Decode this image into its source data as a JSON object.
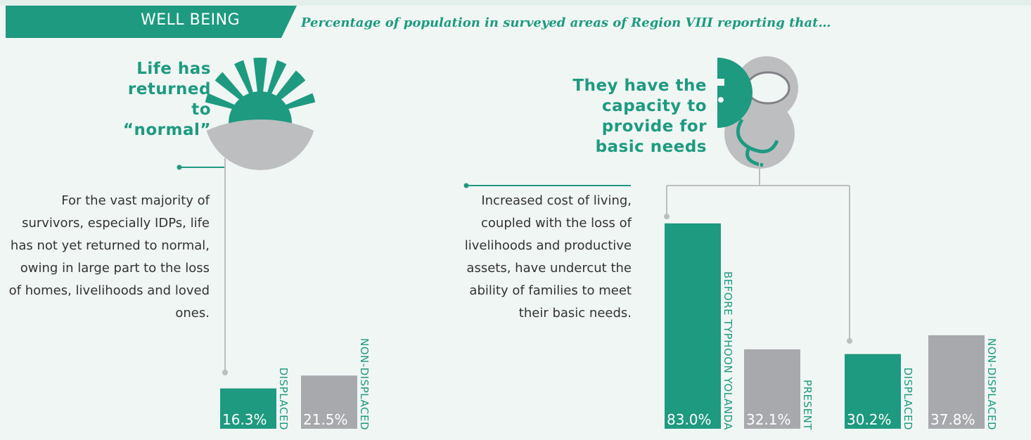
{
  "header": {
    "title": "WELL BEING",
    "subtitle": "Percentage of population in surveyed areas of Region VIII reporting that…"
  },
  "chart_data": [
    {
      "type": "bar",
      "title": "Life has returned to “normal”",
      "annotation": "For the vast majority of survivors, especially IDPs, life has not yet returned to normal, owing in large part to the loss of homes, livelihoods and loved ones.",
      "categories": [
        "DISPLACED",
        "NON-DISPLACED"
      ],
      "values": [
        16.3,
        21.5
      ],
      "value_labels": [
        "16.3%",
        "21.5%"
      ],
      "colors": [
        "#1e9a80",
        "#a7a9ac"
      ]
    },
    {
      "type": "bar",
      "title": "They have the capacity to provide for basic needs",
      "annotation": "Increased cost of living, coupled with the loss of livelihoods and productive assets, have undercut the ability of families to meet their basic needs.",
      "categories": [
        "BEFORE TYPHOON YOLANDA",
        "PRESENT"
      ],
      "values": [
        83.0,
        32.1
      ],
      "value_labels": [
        "83.0%",
        "32.1%"
      ],
      "colors": [
        "#1e9a80",
        "#a7a9ac"
      ]
    },
    {
      "type": "bar",
      "categories": [
        "DISPLACED",
        "NON-DISPLACED"
      ],
      "values": [
        30.2,
        37.8
      ],
      "value_labels": [
        "30.2%",
        "37.8%"
      ],
      "colors": [
        "#1e9a80",
        "#a7a9ac"
      ]
    }
  ]
}
